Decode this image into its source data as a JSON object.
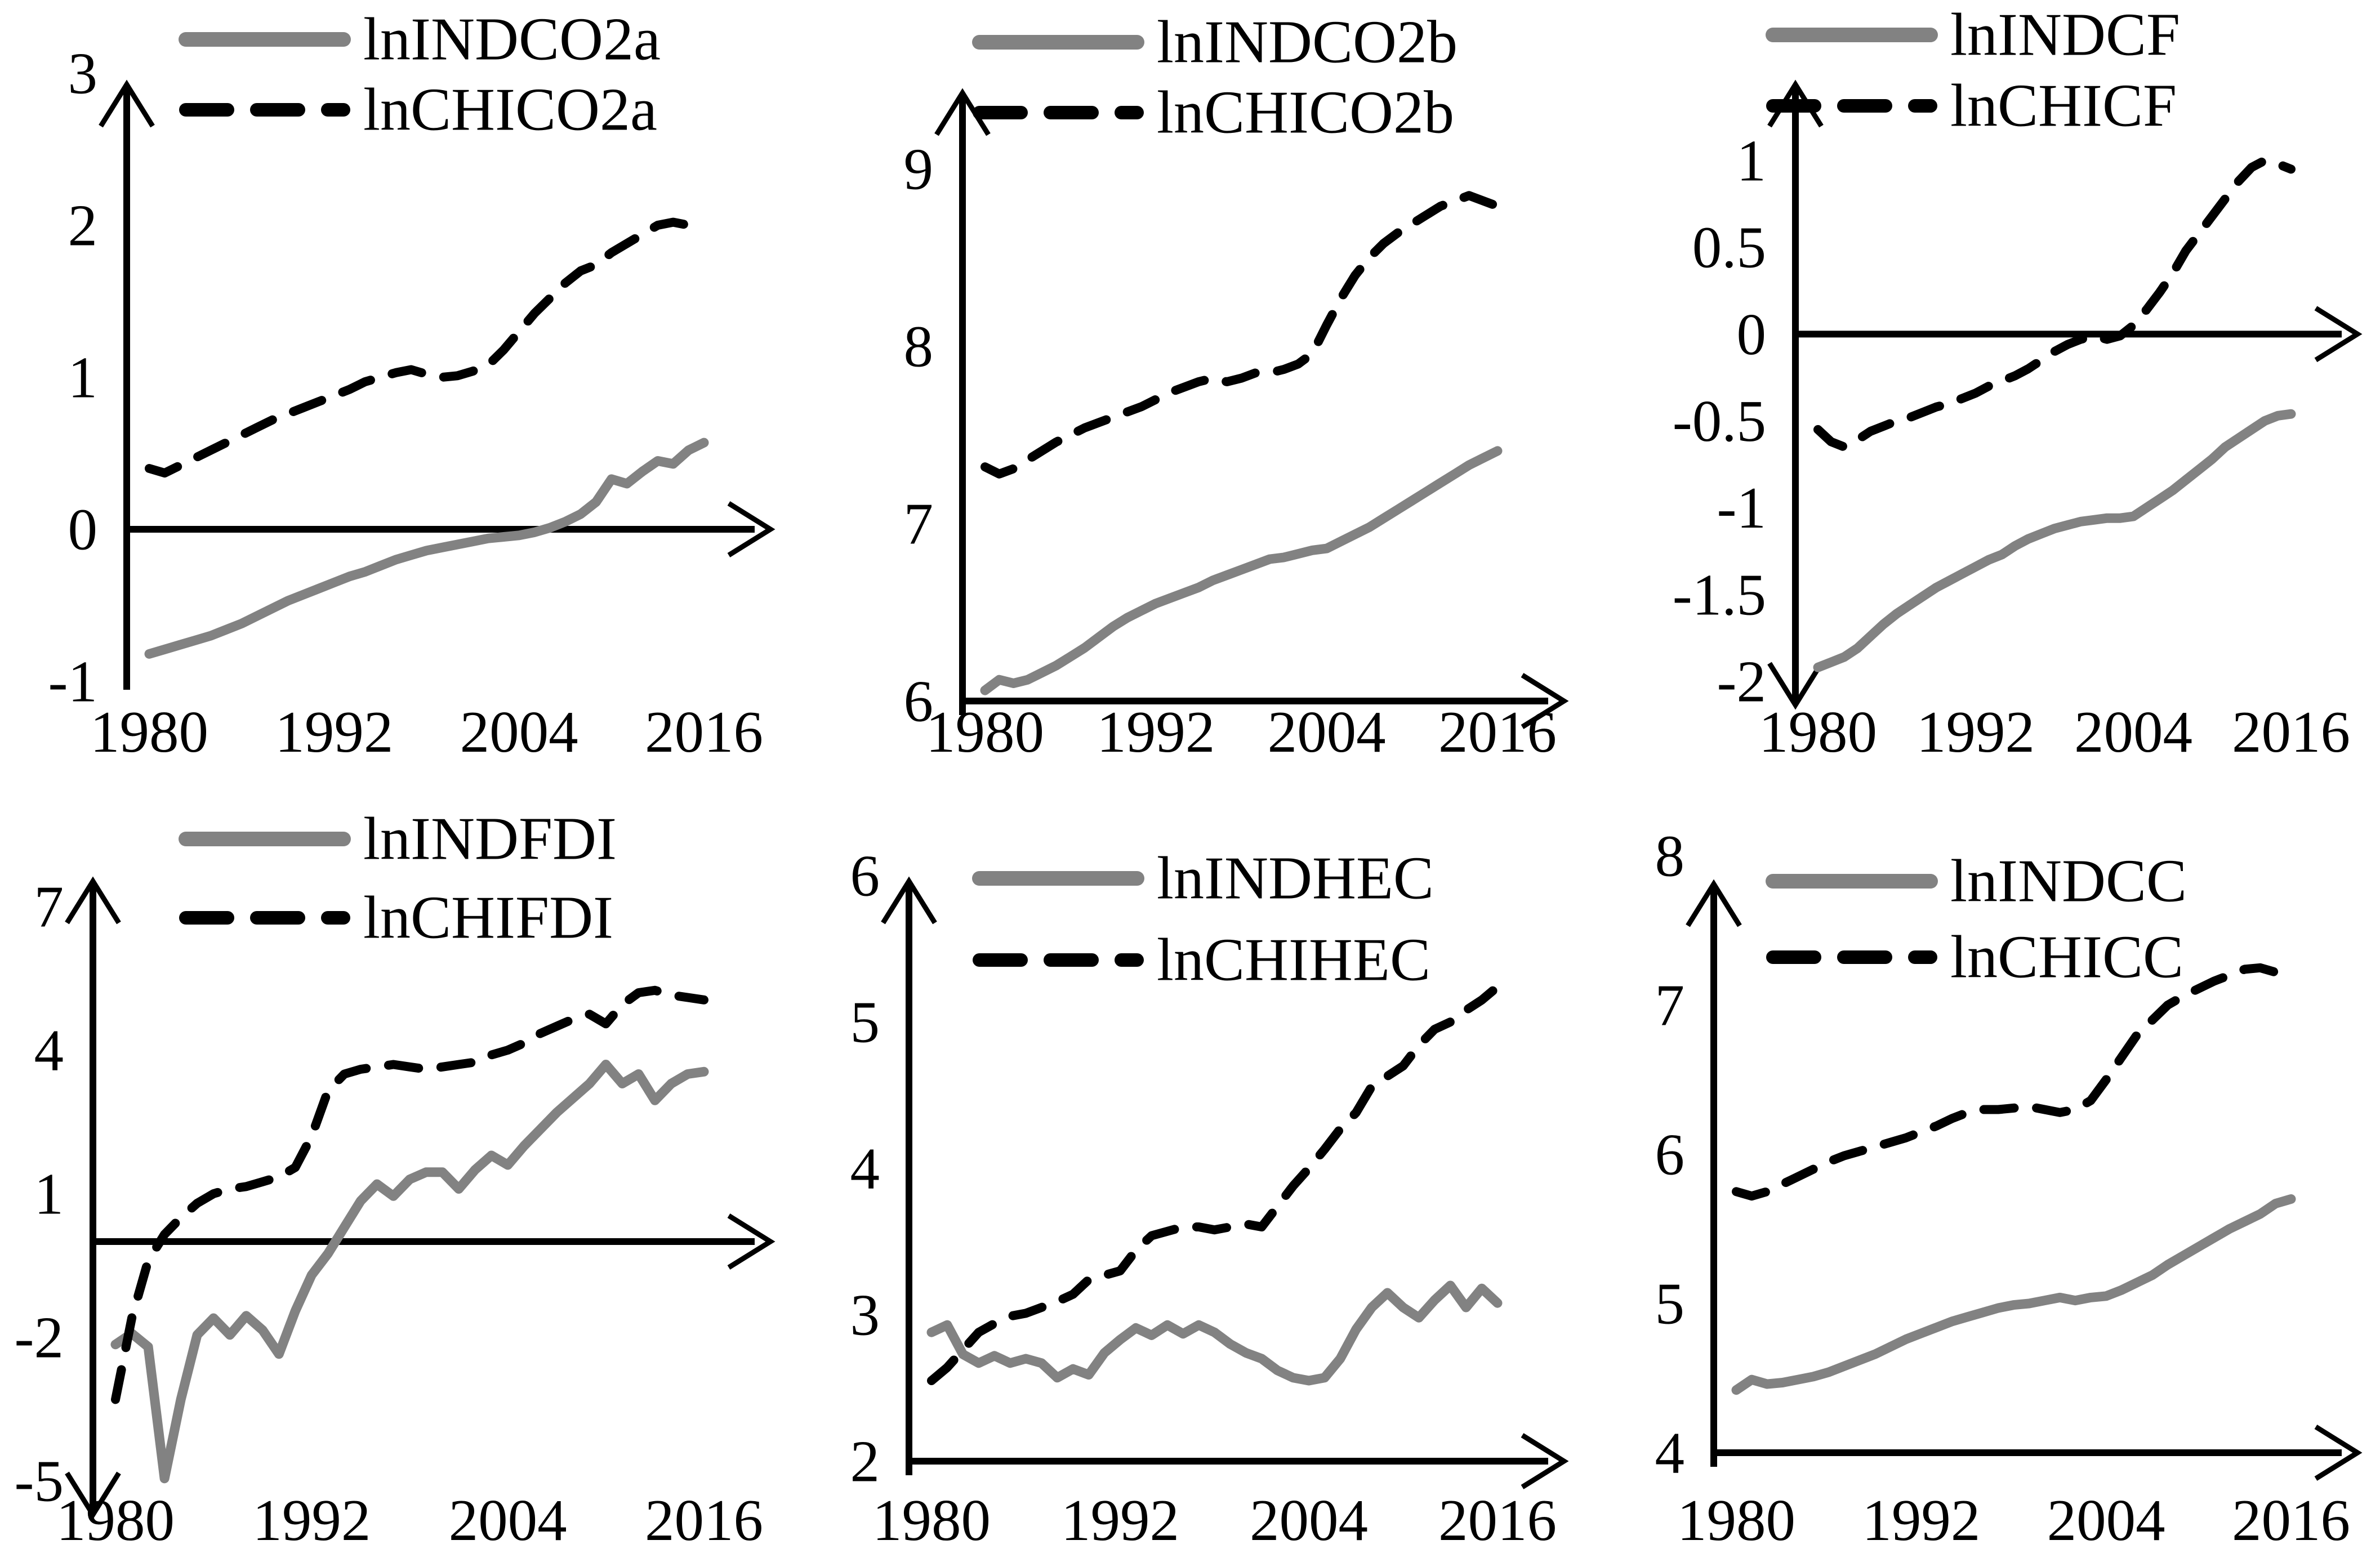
{
  "figure": {
    "background": "#ffffff",
    "description_visible_text_only": true
  },
  "colors": {
    "ind_series_gray": "#828282",
    "chi_series_black": "#000000",
    "axis": "#000000",
    "label_text": "#000000",
    "background": "#ffffff"
  },
  "chart_data": {
    "type": "line",
    "layout": "grid-2x3",
    "grid": false,
    "legend_position": "top-inside",
    "x_tick_labels": [
      "1980",
      "1992",
      "2004",
      "2016"
    ],
    "years": [
      1980,
      1981,
      1982,
      1983,
      1984,
      1985,
      1986,
      1987,
      1988,
      1989,
      1990,
      1991,
      1992,
      1993,
      1994,
      1995,
      1996,
      1997,
      1998,
      1999,
      2000,
      2001,
      2002,
      2003,
      2004,
      2005,
      2006,
      2007,
      2008,
      2009,
      2010,
      2011,
      2012,
      2013,
      2014,
      2015,
      2016
    ],
    "charts": [
      {
        "id": "co2a",
        "grid_position": "row1-col1",
        "y_tick_labels": [
          "3",
          "2",
          "1",
          "0",
          "-1"
        ],
        "y_tick_values": [
          3,
          2,
          1,
          0,
          -1
        ],
        "y_max": 3,
        "y_min": -1,
        "x_axis_at": 0,
        "y_axis_arrows": "up",
        "legend_entries": [
          "lnINDCO2a",
          "lnCHICO2a"
        ],
        "series": [
          {
            "name": "lnINDCO2a",
            "line_style": "solid",
            "color": "#828282",
            "values": [
              -0.82,
              -0.79,
              -0.76,
              -0.73,
              -0.7,
              -0.66,
              -0.62,
              -0.57,
              -0.52,
              -0.47,
              -0.43,
              -0.39,
              -0.35,
              -0.31,
              -0.28,
              -0.24,
              -0.2,
              -0.17,
              -0.14,
              -0.12,
              -0.1,
              -0.08,
              -0.06,
              -0.05,
              -0.04,
              -0.02,
              0.01,
              0.05,
              0.1,
              0.18,
              0.33,
              0.3,
              0.38,
              0.45,
              0.43,
              0.52,
              0.57
            ]
          },
          {
            "name": "lnCHICO2a",
            "line_style": "dashed",
            "color": "#000000",
            "values": [
              0.4,
              0.37,
              0.42,
              0.47,
              0.52,
              0.57,
              0.62,
              0.67,
              0.72,
              0.76,
              0.8,
              0.84,
              0.88,
              0.92,
              0.97,
              1.0,
              1.03,
              1.05,
              1.02,
              1.0,
              1.01,
              1.04,
              1.08,
              1.18,
              1.3,
              1.42,
              1.52,
              1.62,
              1.7,
              1.74,
              1.82,
              1.88,
              1.94,
              2.0,
              2.02,
              2.0,
              1.96
            ]
          }
        ]
      },
      {
        "id": "co2b",
        "grid_position": "row1-col2",
        "y_tick_labels": [
          "9",
          "8",
          "7",
          "6"
        ],
        "y_tick_values": [
          9,
          8,
          7,
          6
        ],
        "y_max": 9,
        "y_min": 6,
        "x_axis_at": 6,
        "y_axis_arrows": "up",
        "legend_entries": [
          "lnINDCO2b",
          "lnCHICO2b"
        ],
        "series": [
          {
            "name": "lnINDCO2b",
            "line_style": "solid",
            "color": "#828282",
            "values": [
              6.06,
              6.12,
              6.1,
              6.12,
              6.16,
              6.2,
              6.25,
              6.3,
              6.36,
              6.42,
              6.47,
              6.51,
              6.55,
              6.58,
              6.61,
              6.64,
              6.68,
              6.71,
              6.74,
              6.77,
              6.8,
              6.81,
              6.83,
              6.85,
              6.86,
              6.9,
              6.94,
              6.98,
              7.03,
              7.08,
              7.13,
              7.18,
              7.23,
              7.28,
              7.33,
              7.37,
              7.41
            ]
          },
          {
            "name": "lnCHICO2b",
            "line_style": "dashed",
            "color": "#000000",
            "values": [
              7.32,
              7.28,
              7.31,
              7.36,
              7.41,
              7.46,
              7.5,
              7.54,
              7.57,
              7.6,
              7.63,
              7.66,
              7.7,
              7.74,
              7.77,
              7.8,
              7.82,
              7.8,
              7.82,
              7.85,
              7.85,
              7.87,
              7.9,
              7.96,
              8.12,
              8.27,
              8.4,
              8.5,
              8.58,
              8.64,
              8.69,
              8.74,
              8.79,
              8.82,
              8.85,
              8.82,
              8.79
            ]
          }
        ]
      },
      {
        "id": "cf",
        "grid_position": "row1-col3",
        "y_tick_labels": [
          "1",
          "0.5",
          "0",
          "-0.5",
          "-1",
          "-1.5",
          "-2"
        ],
        "y_tick_values": [
          1,
          0.5,
          0,
          -0.5,
          -1,
          -1.5,
          -2
        ],
        "y_max": 1,
        "y_min": -2,
        "x_axis_at": 0,
        "y_axis_arrows": "up-down",
        "legend_entries": [
          "lnINDCF",
          "lnCHICF"
        ],
        "series": [
          {
            "name": "lnINDCF",
            "line_style": "solid",
            "color": "#828282",
            "values": [
              -1.92,
              -1.89,
              -1.86,
              -1.81,
              -1.74,
              -1.67,
              -1.61,
              -1.56,
              -1.51,
              -1.46,
              -1.42,
              -1.38,
              -1.34,
              -1.3,
              -1.27,
              -1.22,
              -1.18,
              -1.15,
              -1.12,
              -1.1,
              -1.08,
              -1.07,
              -1.06,
              -1.06,
              -1.05,
              -1.0,
              -0.95,
              -0.9,
              -0.84,
              -0.78,
              -0.72,
              -0.65,
              -0.6,
              -0.55,
              -0.5,
              -0.47,
              -0.46
            ]
          },
          {
            "name": "lnCHICF",
            "line_style": "dashed",
            "color": "#000000",
            "values": [
              -0.55,
              -0.62,
              -0.65,
              -0.61,
              -0.56,
              -0.53,
              -0.5,
              -0.48,
              -0.45,
              -0.42,
              -0.4,
              -0.37,
              -0.34,
              -0.3,
              -0.27,
              -0.24,
              -0.2,
              -0.15,
              -0.1,
              -0.06,
              -0.03,
              -0.01,
              -0.03,
              -0.01,
              0.05,
              0.14,
              0.24,
              0.35,
              0.48,
              0.58,
              0.68,
              0.78,
              0.88,
              0.96,
              1.0,
              0.98,
              0.95
            ]
          }
        ]
      },
      {
        "id": "fdi",
        "grid_position": "row2-col1",
        "y_tick_labels": [
          "7",
          "4",
          "1",
          "-2",
          "-5"
        ],
        "y_tick_values": [
          7,
          4,
          1,
          -2,
          -5
        ],
        "y_max": 7,
        "y_min": -5,
        "x_axis_at": 0,
        "y_axis_arrows": "up-down",
        "legend_entries": [
          "lnINDFDI",
          "lnCHIFDI"
        ],
        "series": [
          {
            "name": "lnINDFDI",
            "line_style": "solid",
            "color": "#828282",
            "values": [
              -2.15,
              -1.92,
              -2.2,
              -4.95,
              -3.3,
              -1.95,
              -1.6,
              -1.95,
              -1.55,
              -1.85,
              -2.35,
              -1.45,
              -0.7,
              -0.25,
              0.3,
              0.85,
              1.2,
              0.95,
              1.3,
              1.45,
              1.45,
              1.1,
              1.5,
              1.8,
              1.6,
              2.0,
              2.35,
              2.7,
              3.0,
              3.3,
              3.7,
              3.3,
              3.5,
              2.95,
              3.3,
              3.5,
              3.55
            ]
          },
          {
            "name": "lnCHIFDI",
            "line_style": "dashed",
            "color": "#000000",
            "values": [
              -3.3,
              -1.6,
              -0.4,
              0.15,
              0.5,
              0.8,
              1.0,
              1.1,
              1.15,
              1.25,
              1.35,
              1.55,
              2.2,
              3.15,
              3.5,
              3.6,
              3.65,
              3.7,
              3.65,
              3.6,
              3.65,
              3.7,
              3.75,
              3.9,
              4.0,
              4.15,
              4.35,
              4.5,
              4.65,
              4.75,
              4.55,
              4.95,
              5.2,
              5.25,
              5.15,
              5.1,
              5.05
            ]
          }
        ]
      },
      {
        "id": "hec",
        "grid_position": "row2-col2",
        "y_tick_labels": [
          "6",
          "5",
          "4",
          "3",
          "2"
        ],
        "y_tick_values": [
          6,
          5,
          4,
          3,
          2
        ],
        "y_max": 6,
        "y_min": 2,
        "x_axis_at": 2,
        "y_axis_arrows": "up",
        "legend_entries": [
          "lnINDHEC",
          "lnCHIHEC"
        ],
        "series": [
          {
            "name": "lnINDHEC",
            "line_style": "solid",
            "color": "#828282",
            "values": [
              2.88,
              2.93,
              2.73,
              2.67,
              2.72,
              2.67,
              2.7,
              2.67,
              2.57,
              2.63,
              2.59,
              2.74,
              2.83,
              2.91,
              2.86,
              2.93,
              2.87,
              2.93,
              2.88,
              2.8,
              2.74,
              2.7,
              2.62,
              2.57,
              2.55,
              2.57,
              2.7,
              2.9,
              3.05,
              3.15,
              3.05,
              2.98,
              3.1,
              3.2,
              3.05,
              3.18,
              3.08
            ]
          },
          {
            "name": "lnCHIHEC",
            "line_style": "dashed",
            "color": "#000000",
            "values": [
              2.55,
              2.64,
              2.76,
              2.88,
              2.94,
              2.99,
              3.01,
              3.05,
              3.09,
              3.14,
              3.24,
              3.27,
              3.3,
              3.44,
              3.54,
              3.57,
              3.6,
              3.6,
              3.58,
              3.6,
              3.62,
              3.6,
              3.74,
              3.88,
              4.0,
              4.13,
              4.27,
              4.38,
              4.56,
              4.63,
              4.7,
              4.84,
              4.95,
              5.0,
              5.08,
              5.15,
              5.24
            ]
          }
        ]
      },
      {
        "id": "cc",
        "grid_position": "row2-col3",
        "y_tick_labels": [
          "8",
          "7",
          "6",
          "5",
          "4"
        ],
        "y_tick_values": [
          8,
          7,
          6,
          5,
          4
        ],
        "y_max": 8,
        "y_min": 4,
        "x_axis_at": 4,
        "y_axis_arrows": "up",
        "legend_entries": [
          "lnINDCC",
          "lnCHICC"
        ],
        "series": [
          {
            "name": "lnINDCC",
            "line_style": "solid",
            "color": "#828282",
            "values": [
              4.42,
              4.49,
              4.46,
              4.47,
              4.49,
              4.51,
              4.54,
              4.58,
              4.62,
              4.66,
              4.71,
              4.76,
              4.8,
              4.84,
              4.88,
              4.91,
              4.94,
              4.97,
              4.99,
              5.0,
              5.02,
              5.04,
              5.02,
              5.04,
              5.05,
              5.09,
              5.14,
              5.19,
              5.26,
              5.32,
              5.38,
              5.44,
              5.5,
              5.55,
              5.6,
              5.67,
              5.7
            ]
          },
          {
            "name": "lnCHICC",
            "line_style": "dashed",
            "color": "#000000",
            "values": [
              5.75,
              5.72,
              5.75,
              5.8,
              5.85,
              5.9,
              5.95,
              5.99,
              6.02,
              6.05,
              6.08,
              6.11,
              6.15,
              6.19,
              6.24,
              6.28,
              6.3,
              6.3,
              6.31,
              6.32,
              6.3,
              6.28,
              6.3,
              6.36,
              6.5,
              6.65,
              6.8,
              6.9,
              7.0,
              7.06,
              7.11,
              7.16,
              7.2,
              7.24,
              7.25,
              7.22,
              7.2
            ]
          }
        ]
      }
    ]
  }
}
